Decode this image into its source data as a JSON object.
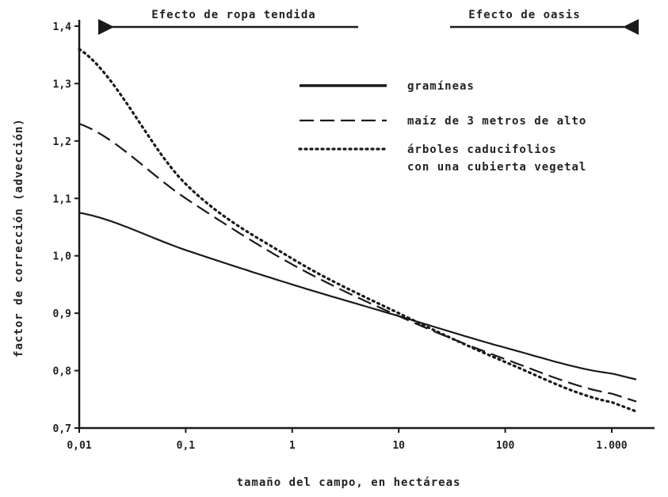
{
  "chart_data": {
    "type": "line",
    "xscale": "log",
    "xlabel": "tamaño del campo, en hectáreas",
    "ylabel": "factor de corrección (advección)",
    "xlim": [
      0.01,
      1000
    ],
    "ylim": [
      0.7,
      1.4
    ],
    "xticks": [
      {
        "value": 0.01,
        "label": "0,01"
      },
      {
        "value": 0.1,
        "label": "0,1"
      },
      {
        "value": 1,
        "label": "1"
      },
      {
        "value": 10,
        "label": "10"
      },
      {
        "value": 100,
        "label": "100"
      },
      {
        "value": 1000,
        "label": "1.000"
      }
    ],
    "yticks": [
      {
        "value": 0.7,
        "label": "0,7"
      },
      {
        "value": 0.8,
        "label": "0,8"
      },
      {
        "value": 0.9,
        "label": "0,9"
      },
      {
        "value": 1.0,
        "label": "1,0"
      },
      {
        "value": 1.1,
        "label": "1,1"
      },
      {
        "value": 1.2,
        "label": "1,2"
      },
      {
        "value": 1.3,
        "label": "1,3"
      },
      {
        "value": 1.4,
        "label": "1,4"
      }
    ],
    "annotations": [
      {
        "text": "Efecto de ropa tendida",
        "direction": "left"
      },
      {
        "text": "Efecto de oasis",
        "direction": "right"
      }
    ],
    "legend_position": "upper-right",
    "series": [
      {
        "name": "gramíneas",
        "style": "solid",
        "x": [
          0.01,
          0.1,
          1,
          10,
          100,
          1000
        ],
        "y": [
          1.075,
          1.01,
          0.95,
          0.895,
          0.84,
          0.795
        ]
      },
      {
        "name": "maíz de 3 metros de alto",
        "style": "dashed",
        "x": [
          0.01,
          0.1,
          1,
          10,
          100,
          1000
        ],
        "y": [
          1.23,
          1.1,
          0.985,
          0.895,
          0.82,
          0.76
        ]
      },
      {
        "name": "árboles caducifolios con una cubierta vegetal",
        "name_lines": [
          "árboles caducifolios",
          "con una cubierta vegetal"
        ],
        "style": "dotted",
        "x": [
          0.01,
          0.1,
          1,
          10,
          100,
          1000
        ],
        "y": [
          1.36,
          1.125,
          0.995,
          0.9,
          0.815,
          0.745
        ]
      }
    ]
  },
  "colors": {
    "line": "#1a1a1a",
    "background": "#ffffff"
  }
}
